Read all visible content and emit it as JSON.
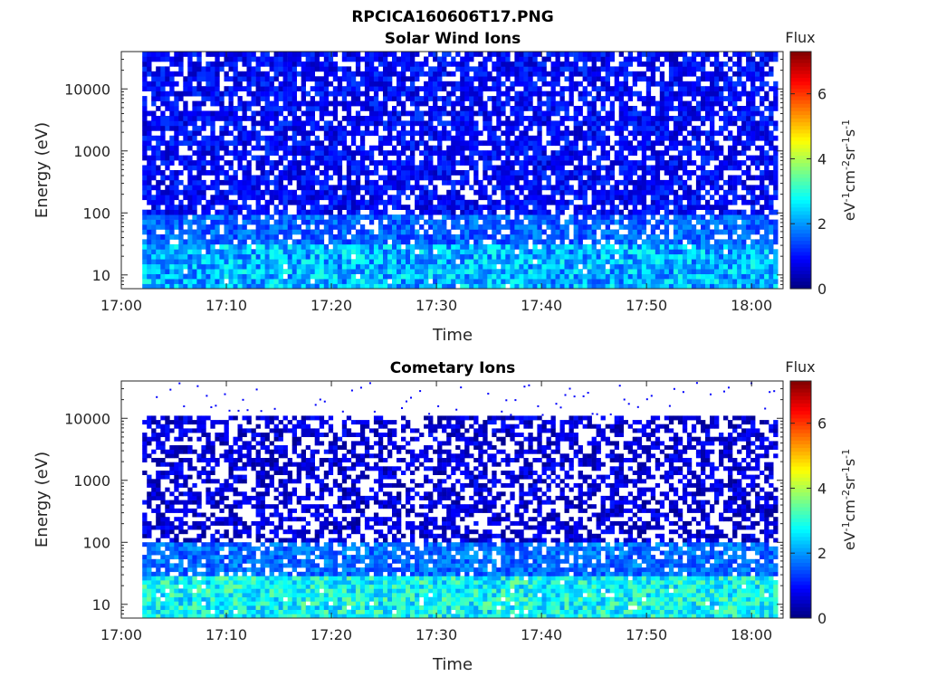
{
  "title": "RPCICA160606T17.PNG",
  "chart_data": [
    {
      "type": "heatmap",
      "title": "Solar Wind Ions",
      "xlabel": "Time",
      "ylabel": "Energy (eV)",
      "xlim": [
        "17:00",
        "18:03"
      ],
      "x_tick_labels": [
        "17:00",
        "17:10",
        "17:20",
        "17:30",
        "17:40",
        "17:50",
        "18:00"
      ],
      "y_scale": "log",
      "ylim": [
        6,
        40000
      ],
      "y_tick_labels": [
        "10",
        "100",
        "1000",
        "10000"
      ],
      "data_time_range": [
        "17:02",
        "18:02.5"
      ],
      "energy_range_eV": [
        6,
        40000
      ],
      "colorbar": {
        "title": "Flux",
        "label": "eV-1cm-2sr-1s-1",
        "range": [
          0,
          7.3
        ],
        "tick_labels": [
          "0",
          "2",
          "4",
          "6"
        ],
        "colormap": "jet"
      },
      "typical_flux_levels": {
        "below_30eV": 2.2,
        "30_to_100eV": 1.6,
        "above_100eV": 0.9
      }
    },
    {
      "type": "heatmap",
      "title": "Cometary Ions",
      "xlabel": "Time",
      "ylabel": "Energy (eV)",
      "xlim": [
        "17:00",
        "18:03"
      ],
      "x_tick_labels": [
        "17:00",
        "17:10",
        "17:20",
        "17:30",
        "17:40",
        "17:50",
        "18:00"
      ],
      "y_scale": "log",
      "ylim": [
        6,
        40000
      ],
      "y_tick_labels": [
        "10",
        "100",
        "1000",
        "10000"
      ],
      "data_time_range": [
        "17:02",
        "18:02.5"
      ],
      "energy_range_eV": [
        6,
        11000
      ],
      "sparse_points_above_eV": 11000,
      "colorbar": {
        "title": "Flux",
        "label": "eV-1cm-2sr-1s-1",
        "range": [
          0,
          7.3
        ],
        "tick_labels": [
          "0",
          "2",
          "4",
          "6"
        ],
        "colormap": "jet"
      },
      "typical_flux_levels": {
        "below_30eV": 2.8,
        "30_to_100eV": 1.7,
        "above_100eV": 0.6
      }
    }
  ]
}
